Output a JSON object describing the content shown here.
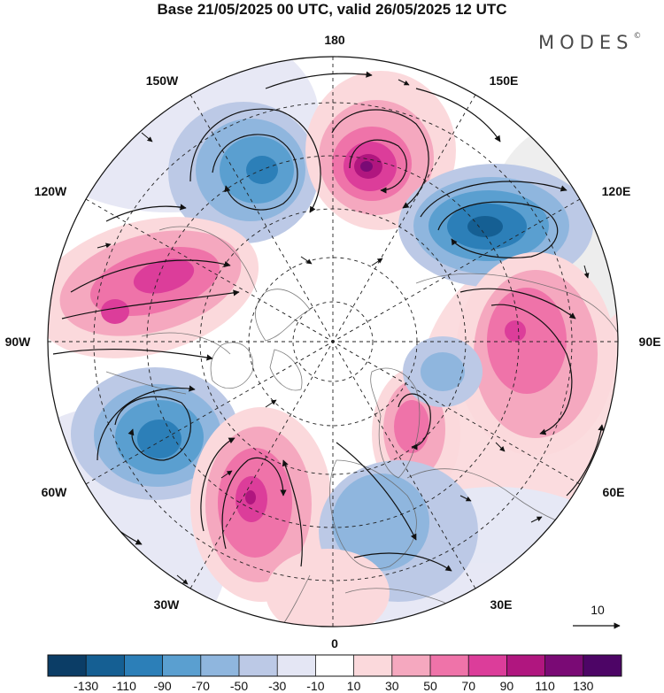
{
  "title": "Base 21/05/2025 00 UTC, valid 26/05/2025 12 UTC",
  "brand": "MODES",
  "brand_mark": "©",
  "longitude_labels": {
    "top": "180",
    "top_left": "150W",
    "top_right": "150E",
    "upper_left": "120W",
    "upper_right": "120E",
    "left": "90W",
    "right": "90E",
    "lower_left": "60W",
    "lower_right": "60E",
    "bottom_left": "30W",
    "bottom_right": "30E",
    "bottom": "0"
  },
  "reference_vector": {
    "label": "10"
  },
  "colorbar": {
    "ticks": [
      "-130",
      "-110",
      "-90",
      "-70",
      "-50",
      "-30",
      "-10",
      "10",
      "30",
      "50",
      "70",
      "90",
      "110",
      "130"
    ],
    "colors": [
      "#0b3d66",
      "#155f93",
      "#2c7fb8",
      "#5a9fd0",
      "#8fb6de",
      "#bcc9e6",
      "#e4e6f4",
      "#ffffff",
      "#fbd9dc",
      "#f5a8bf",
      "#ef73a9",
      "#dc3d9a",
      "#b0167f",
      "#7a0a75",
      "#4d0566"
    ]
  },
  "anomaly_centers": [
    {
      "name": "low-north-pacific",
      "color": "#5a9fd0",
      "core": "#2c7fb8"
    },
    {
      "name": "high-bering",
      "color": "#ef73a9",
      "core": "#7a0a75"
    },
    {
      "name": "low-siberia",
      "color": "#5a9fd0",
      "core": "#155f93"
    },
    {
      "name": "high-north-america",
      "color": "#ef73a9",
      "core": "#b0167f"
    },
    {
      "name": "high-central-asia",
      "color": "#ef73a9",
      "core": "#dc3d9a"
    },
    {
      "name": "low-north-atlantic",
      "color": "#5a9fd0",
      "core": "#2c7fb8"
    },
    {
      "name": "high-central-atlantic",
      "color": "#ef73a9",
      "core": "#b0167f"
    },
    {
      "name": "high-scandinavia",
      "color": "#f5a8bf",
      "core": "#ef73a9"
    },
    {
      "name": "low-europe",
      "color": "#8fb6de",
      "core": "#8fb6de"
    }
  ]
}
